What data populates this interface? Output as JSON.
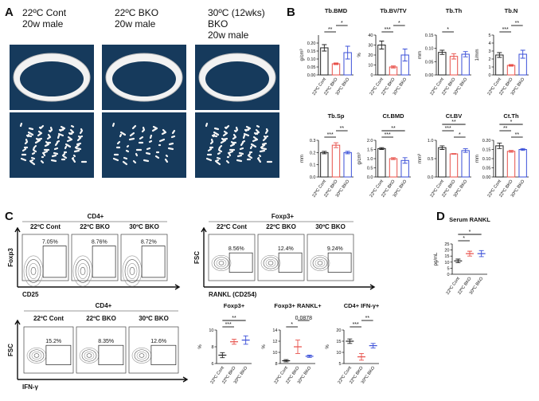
{
  "panel_labels": [
    "A",
    "B",
    "C",
    "D"
  ],
  "images": {
    "titles": [
      [
        "22ºC Cont",
        "20w male"
      ],
      [
        "22ºC BKO",
        "20w male"
      ],
      [
        "30ºC (12wks)",
        "BKO",
        "20w male"
      ]
    ]
  },
  "flow_panels": [
    {
      "title": "CD4+",
      "columns": [
        "22ºC Cont",
        "22ºC BKO",
        "30ºC BKO"
      ],
      "gates": [
        "7.05%",
        "8.76%",
        "8.72%"
      ],
      "y_label": "Foxp3",
      "x_label": "CD25"
    },
    {
      "title": "Foxp3+",
      "columns": [
        "22ºC Cont",
        "22ºC BKO",
        "30ºC BKO"
      ],
      "gates": [
        "8.56%",
        "12.4%",
        "9.24%"
      ],
      "y_label": "FSC",
      "x_label": "RANKL (CD254)"
    },
    {
      "title": "CD4+",
      "columns": [
        "22ºC Cont",
        "22ºC BKO",
        "30ºC BKO"
      ],
      "gates": [
        "15.2%",
        "8.35%",
        "12.6%"
      ],
      "y_label": "FSC",
      "x_label": "IFN-γ"
    }
  ],
  "chart_data": [
    {
      "type": "bar",
      "title": "Tb.BMD",
      "y_label": "g/cm³",
      "categories": [
        "22ºC Cont",
        "22ºC BKO",
        "30ºC BKO"
      ],
      "values": [
        0.17,
        0.07,
        0.14
      ],
      "errors": [
        0.02,
        0.005,
        0.04
      ],
      "colors": [
        "#222222",
        "#e8504a",
        "#3a4fd8"
      ],
      "ylim": [
        0,
        0.25
      ],
      "yticks": [
        {
          "value": 0,
          "label": "0.00"
        },
        0.05,
        {
          "value": 0.1,
          "label": "0.10"
        },
        0.15,
        {
          "value": 0.2,
          "label": "0.20"
        }
      ],
      "comparisons": [
        {
          "label": "**",
          "pair": [
            "22ºC Cont",
            "22ºC BKO"
          ]
        },
        {
          "label": "*",
          "pair": [
            "22ºC BKO",
            "30ºC BKO"
          ]
        }
      ]
    },
    {
      "type": "bar",
      "title": "Tb.BV/TV",
      "y_label": "%",
      "categories": [
        "22ºC Cont",
        "22ºC BKO",
        "30ºC BKO"
      ],
      "values": [
        30,
        8,
        20
      ],
      "errors": [
        4,
        1,
        6
      ],
      "colors": [
        "#222222",
        "#e8504a",
        "#3a4fd8"
      ],
      "ylim": [
        0,
        40
      ],
      "yticks": [
        0,
        10,
        20,
        30,
        40
      ],
      "comparisons": [
        {
          "label": "***",
          "pair": [
            "22ºC Cont",
            "22ºC BKO"
          ]
        },
        {
          "label": "*",
          "pair": [
            "22ºC BKO",
            "30ºC BKO"
          ]
        }
      ]
    },
    {
      "type": "bar",
      "title": "Tb.Th",
      "y_label": "mm",
      "categories": [
        "22ºC Cont",
        "22ºC BKO",
        "30ºC BKO"
      ],
      "values": [
        0.085,
        0.07,
        0.078
      ],
      "errors": [
        0.008,
        0.01,
        0.01
      ],
      "colors": [
        "#222222",
        "#e8504a",
        "#3a4fd8"
      ],
      "ylim": [
        0,
        0.15
      ],
      "yticks": [
        {
          "value": 0,
          "label": "0.00"
        },
        0.05,
        {
          "value": 0.1,
          "label": "0.10"
        },
        0.15
      ],
      "comparisons": [
        {
          "label": "*",
          "pair": [
            "22ºC Cont",
            "22ºC BKO"
          ]
        }
      ]
    },
    {
      "type": "bar",
      "title": "Tb.N",
      "y_label": "1/mm",
      "categories": [
        "22ºC Cont",
        "22ºC BKO",
        "30ºC BKO"
      ],
      "values": [
        2.5,
        1.2,
        2.6
      ],
      "errors": [
        0.3,
        0.1,
        0.5
      ],
      "colors": [
        "#222222",
        "#e8504a",
        "#3a4fd8"
      ],
      "ylim": [
        0,
        5
      ],
      "yticks": [
        0,
        1,
        2,
        3,
        4,
        5
      ],
      "comparisons": [
        {
          "label": "***",
          "pair": [
            "22ºC Cont",
            "22ºC BKO"
          ]
        },
        {
          "label": "**",
          "pair": [
            "22ºC BKO",
            "30ºC BKO"
          ]
        }
      ]
    },
    {
      "type": "bar",
      "title": "Tb.Sp",
      "y_label": "mm",
      "categories": [
        "22ºC Cont",
        "22ºC BKO",
        "30ºC BKO"
      ],
      "values": [
        0.2,
        0.26,
        0.2
      ],
      "errors": [
        0.01,
        0.02,
        0.01
      ],
      "colors": [
        "#222222",
        "#e8504a",
        "#3a4fd8"
      ],
      "ylim": [
        0,
        0.3
      ],
      "yticks": [
        {
          "value": 0,
          "label": "0.0"
        },
        0.1,
        0.2,
        0.3
      ],
      "comparisons": [
        {
          "label": "***",
          "pair": [
            "22ºC Cont",
            "22ºC BKO"
          ]
        },
        {
          "label": "**",
          "pair": [
            "22ºC BKO",
            "30ºC BKO"
          ]
        }
      ]
    },
    {
      "type": "bar",
      "title": "Ct.BMD",
      "y_label": "g/cm³",
      "categories": [
        "22ºC Cont",
        "22ºC BKO",
        "30ºC BKO"
      ],
      "values": [
        1.55,
        1.0,
        0.9
      ],
      "errors": [
        0.05,
        0.05,
        0.15
      ],
      "colors": [
        "#222222",
        "#e8504a",
        "#3a4fd8"
      ],
      "ylim": [
        0,
        2
      ],
      "yticks": [
        {
          "value": 0,
          "label": "0.0"
        },
        0.5,
        {
          "value": 1,
          "label": "1.0"
        },
        1.5,
        {
          "value": 2,
          "label": "2.0"
        }
      ],
      "comparisons": [
        {
          "label": "***",
          "pair": [
            "22ºC Cont",
            "22ºC BKO"
          ]
        },
        {
          "label": "**",
          "pair": [
            "22ºC Cont",
            "30ºC BKO"
          ]
        }
      ]
    },
    {
      "type": "bar",
      "title": "Ct.BV",
      "y_label": "mm³",
      "categories": [
        "22ºC Cont",
        "22ºC BKO",
        "30ºC BKO"
      ],
      "values": [
        0.8,
        0.63,
        0.72
      ],
      "errors": [
        0.05,
        0.01,
        0.05
      ],
      "colors": [
        "#222222",
        "#e8504a",
        "#3a4fd8"
      ],
      "ylim": [
        0,
        1
      ],
      "yticks": [
        {
          "value": 0,
          "label": "0.0"
        },
        0.5,
        {
          "value": 1,
          "label": "1.0"
        }
      ],
      "comparisons": [
        {
          "label": "*",
          "pair": [
            "22ºC BKO",
            "30ºC BKO"
          ]
        },
        {
          "label": "***",
          "pair": [
            "22ºC Cont",
            "22ºC BKO"
          ]
        },
        {
          "label": "**",
          "pair": [
            "22ºC Cont",
            "30ºC BKO"
          ]
        }
      ]
    },
    {
      "type": "bar",
      "title": "Ct.Th",
      "y_label": "mm",
      "categories": [
        "22ºC Cont",
        "22ºC BKO",
        "30ºC BKO"
      ],
      "values": [
        0.17,
        0.14,
        0.15
      ],
      "errors": [
        0.015,
        0.005,
        0.005
      ],
      "colors": [
        "#222222",
        "#e8504a",
        "#3a4fd8"
      ],
      "ylim": [
        0,
        0.2
      ],
      "yticks": [
        {
          "value": 0,
          "label": "0.00"
        },
        0.05,
        {
          "value": 0.1,
          "label": "0.10"
        },
        0.15,
        {
          "value": 0.2,
          "label": "0.20"
        }
      ],
      "comparisons": [
        {
          "label": "**",
          "pair": [
            "22ºC BKO",
            "30ºC BKO"
          ]
        },
        {
          "label": "**",
          "pair": [
            "22ºC Cont",
            "22ºC BKO"
          ]
        },
        {
          "label": "*",
          "pair": [
            "22ºC Cont",
            "30ºC BKO"
          ]
        }
      ]
    },
    {
      "type": "dot",
      "title": "Foxp3+",
      "y_label": "%",
      "categories": [
        "22ºC Cont",
        "22ºC BKO",
        "30ºC BKO"
      ],
      "values": [
        7.0,
        8.6,
        8.8
      ],
      "errors": [
        0.3,
        0.3,
        0.5
      ],
      "colors": [
        "#222222",
        "#e8504a",
        "#3a4fd8"
      ],
      "ylim": [
        6,
        10
      ],
      "yticks": [
        6,
        8,
        10
      ],
      "comparisons": [
        {
          "label": "***",
          "pair": [
            "22ºC Cont",
            "22ºC BKO"
          ]
        },
        {
          "label": "**",
          "pair": [
            "22ºC Cont",
            "30ºC BKO"
          ]
        }
      ]
    },
    {
      "type": "dot",
      "title": "Foxp3+ RANKL+",
      "y_label": "%",
      "categories": [
        "22ºC Cont",
        "22ºC BKO",
        "30ºC BKO"
      ],
      "values": [
        8.5,
        11,
        9.3
      ],
      "errors": [
        0.2,
        1.2,
        0.2
      ],
      "colors": [
        "#222222",
        "#e8504a",
        "#3a4fd8"
      ],
      "ylim": [
        8,
        14
      ],
      "yticks": [
        8,
        10,
        12,
        14
      ],
      "comparisons": [
        {
          "label": "*",
          "pair": [
            "22ºC Cont",
            "22ºC BKO"
          ]
        },
        {
          "label": "0.0878",
          "pair": [
            "22ºC BKO",
            "30ºC BKO"
          ]
        }
      ]
    },
    {
      "type": "dot",
      "title": "CD4+ IFN-γ+",
      "y_label": "%",
      "categories": [
        "22ºC Cont",
        "22ºC BKO",
        "30ºC BKO"
      ],
      "values": [
        15,
        8,
        13
      ],
      "errors": [
        1,
        1.5,
        1
      ],
      "colors": [
        "#222222",
        "#e8504a",
        "#3a4fd8"
      ],
      "ylim": [
        5,
        20
      ],
      "yticks": [
        5,
        10,
        15,
        20
      ],
      "comparisons": [
        {
          "label": "***",
          "pair": [
            "22ºC Cont",
            "22ºC BKO"
          ]
        },
        {
          "label": "**",
          "pair": [
            "22ºC BKO",
            "30ºC BKO"
          ]
        }
      ]
    },
    {
      "type": "dot",
      "title": "Serum RANKL",
      "y_label": "pg/mL",
      "categories": [
        "22ºC Cont",
        "22ºC BKO",
        "30ºC BKO"
      ],
      "values": [
        11,
        17,
        17
      ],
      "errors": [
        1.5,
        2,
        2.5
      ],
      "colors": [
        "#222222",
        "#e8504a",
        "#3a4fd8"
      ],
      "ylim": [
        0,
        25
      ],
      "yticks": [
        0,
        5,
        10,
        15,
        20,
        25
      ],
      "comparisons": [
        {
          "label": "*",
          "pair": [
            "22ºC Cont",
            "22ºC BKO"
          ]
        },
        {
          "label": "*",
          "pair": [
            "22ºC Cont",
            "30ºC BKO"
          ]
        }
      ]
    }
  ]
}
